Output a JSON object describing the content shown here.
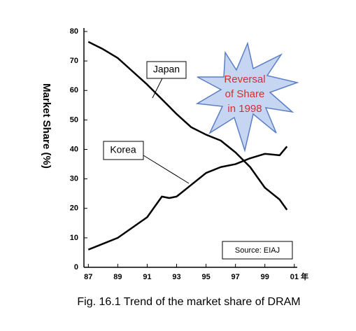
{
  "chart_data": {
    "type": "line",
    "caption": "Fig. 16.1 Trend of the market share of DRAM",
    "ylabel": "Market Share (%)",
    "x": [
      1987,
      1988,
      1989,
      1990,
      1991,
      1992,
      1992.5,
      1993,
      1994,
      1995,
      1996,
      1997,
      1998,
      1999,
      2000,
      2000.5
    ],
    "series": [
      {
        "name": "Japan",
        "color": "#000000",
        "values": [
          76.5,
          74,
          71,
          66.5,
          62,
          57,
          54.5,
          52,
          47.5,
          45,
          43,
          39,
          34,
          27,
          23,
          19.5
        ]
      },
      {
        "name": "Korea",
        "color": "#000000",
        "values": [
          6,
          8,
          10,
          13.5,
          17,
          24,
          23.5,
          24,
          28,
          32,
          34,
          35,
          37,
          38.5,
          38,
          41
        ]
      }
    ],
    "xlim": [
      1986.7,
      2001.2
    ],
    "xticks": [
      {
        "value": 1987,
        "label": "87"
      },
      {
        "value": 1989,
        "label": "89"
      },
      {
        "value": 1991,
        "label": "91"
      },
      {
        "value": 1993,
        "label": "93"
      },
      {
        "value": 1995,
        "label": "95"
      },
      {
        "value": 1997,
        "label": "97"
      },
      {
        "value": 1999,
        "label": "99"
      },
      {
        "value": 2001,
        "label": "01 年"
      }
    ],
    "ylim": [
      0,
      80
    ],
    "yticks": [
      0,
      10,
      20,
      30,
      40,
      50,
      60,
      70,
      80
    ],
    "grid": false,
    "annotation": [
      "Reversal",
      "of Share",
      "in 1998"
    ],
    "annotation_color": "#d0312d",
    "source": "Source: EIAJ"
  }
}
